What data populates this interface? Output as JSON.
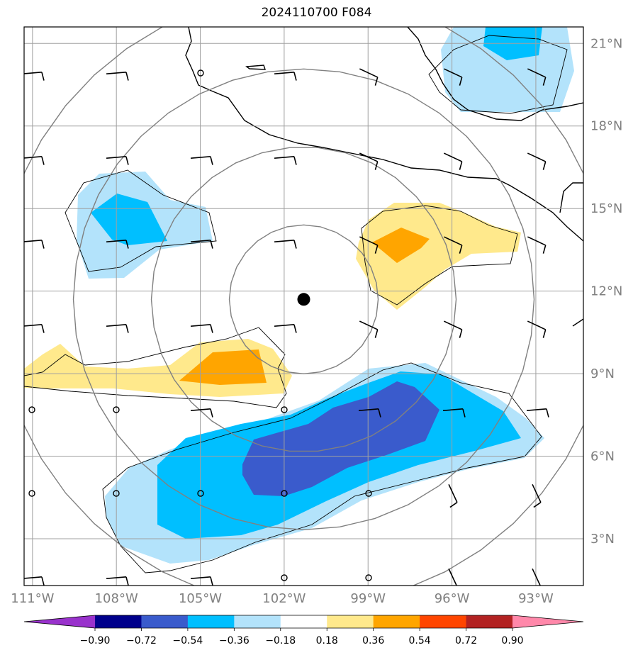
{
  "title": "2024110700 F084",
  "map": {
    "lon_labels": [
      "111°W",
      "108°W",
      "105°W",
      "102°W",
      "99°W",
      "96°W",
      "93°W"
    ],
    "lon_values": [
      -111,
      -108,
      -105,
      -102,
      -99,
      -96,
      -93
    ],
    "lat_labels": [
      "21°N",
      "18°N",
      "15°N",
      "12°N",
      "9°N",
      "6°N",
      "3°N"
    ],
    "lat_values": [
      21,
      18,
      15,
      12,
      9,
      6,
      3
    ],
    "extent": {
      "lon_min": -111.3,
      "lon_max": -91.3,
      "lat_min": 1.3,
      "lat_max": 21.6
    },
    "center_marker": {
      "lon": -101.3,
      "lat": 11.7
    },
    "range_ring_count": 4,
    "gridlines": true,
    "fill_colors": {
      "dark_blue": "#3a5bcc",
      "mid_blue": "#00bfff",
      "light_blue": "#b3e3fb",
      "light_yellow": "#ffe98c",
      "orange": "#ffa500"
    }
  },
  "colorbar": {
    "tick_labels": [
      "−0.90",
      "−0.72",
      "−0.54",
      "−0.36",
      "−0.18",
      "0.18",
      "0.36",
      "0.54",
      "0.72",
      "0.90"
    ],
    "colors": [
      "#9932cc",
      "#00008b",
      "#3a5bcc",
      "#00bfff",
      "#b3e3fb",
      "#ffffff",
      "#ffe98c",
      "#ffa500",
      "#ff4500",
      "#b22222",
      "#ff88aa"
    ]
  }
}
